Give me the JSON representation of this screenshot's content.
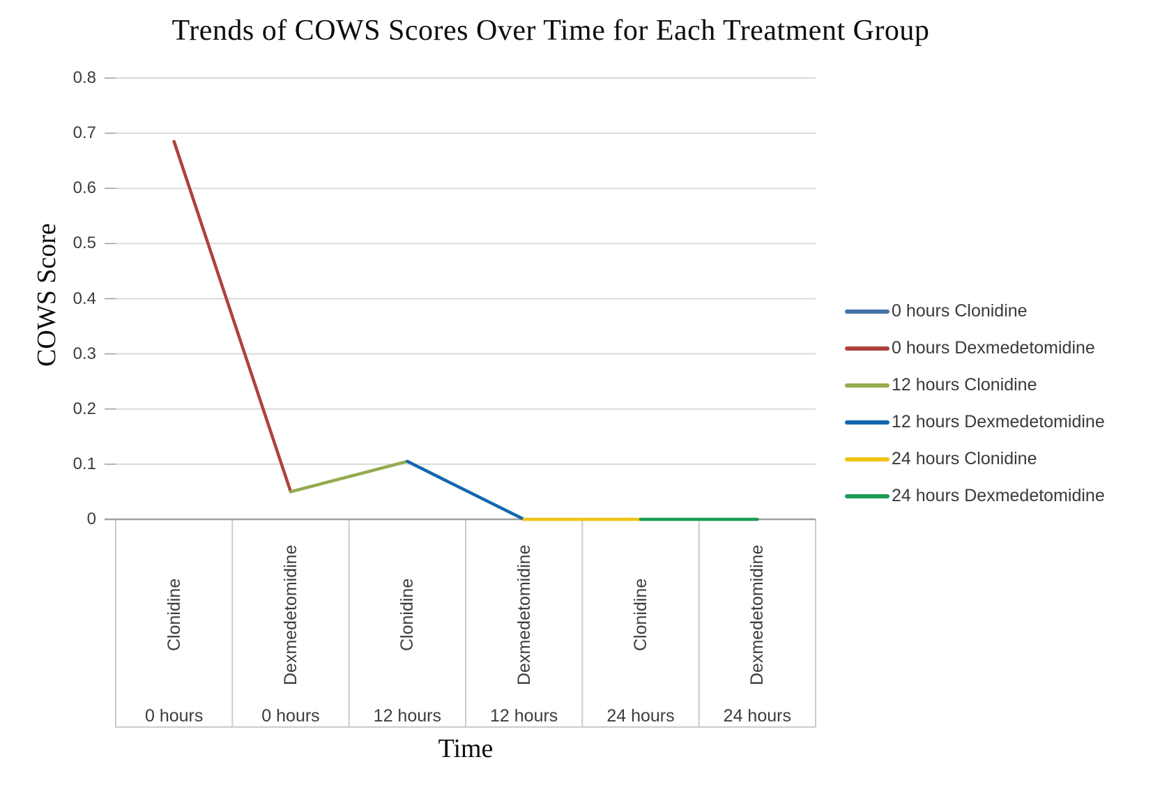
{
  "chart_data": {
    "type": "line",
    "title": "Trends of COWS Scores Over Time for Each Treatment Group",
    "xlabel": "Time",
    "ylabel": "COWS Score",
    "ylim": [
      0,
      0.8
    ],
    "yticks": [
      0,
      0.1,
      0.2,
      0.3,
      0.4,
      0.5,
      0.6,
      0.7,
      0.8
    ],
    "ytick_labels": [
      "0",
      "0.1",
      "0.2",
      "0.3",
      "0.4",
      "0.5",
      "0.6",
      "0.7",
      "0.8"
    ],
    "grid": true,
    "legend_position": "right",
    "categories": [
      {
        "group": "Clonidine",
        "time": "0 hours"
      },
      {
        "group": "Dexmedetomidine",
        "time": "0 hours"
      },
      {
        "group": "Clonidine",
        "time": "12 hours"
      },
      {
        "group": "Dexmedetomidine",
        "time": "12 hours"
      },
      {
        "group": "Clonidine",
        "time": "24 hours"
      },
      {
        "group": "Dexmedetomidine",
        "time": "24 hours"
      }
    ],
    "category_values": [
      0.685,
      0.05,
      0.105,
      0,
      0,
      0
    ],
    "series": [
      {
        "name": "0 hours Clonidine",
        "color": "#4472A8",
        "category_indices": [
          0
        ],
        "values": [
          0.685
        ]
      },
      {
        "name": "0 hours Dexmedetomidine",
        "color": "#B0413F",
        "category_indices": [
          0,
          1
        ],
        "values": [
          0.685,
          0.05
        ]
      },
      {
        "name": "12 hours Clonidine",
        "color": "#94AB4F",
        "category_indices": [
          1,
          2
        ],
        "values": [
          0.05,
          0.105
        ]
      },
      {
        "name": "12 hours Dexmedetomidine",
        "color": "#1268AE",
        "category_indices": [
          2,
          3
        ],
        "values": [
          0.105,
          0
        ]
      },
      {
        "name": "24 hours Clonidine",
        "color": "#F0C412",
        "category_indices": [
          3,
          4
        ],
        "values": [
          0,
          0
        ]
      },
      {
        "name": "24 hours Dexmedetomidine",
        "color": "#189C52",
        "category_indices": [
          4,
          5
        ],
        "values": [
          0,
          0
        ]
      }
    ],
    "style_colors": {
      "gridline": "#D9D9D9",
      "zero_axis": "#A0A0A0",
      "category_box_border": "#CBCBCB",
      "tick_text": "#3D3D3D"
    }
  }
}
